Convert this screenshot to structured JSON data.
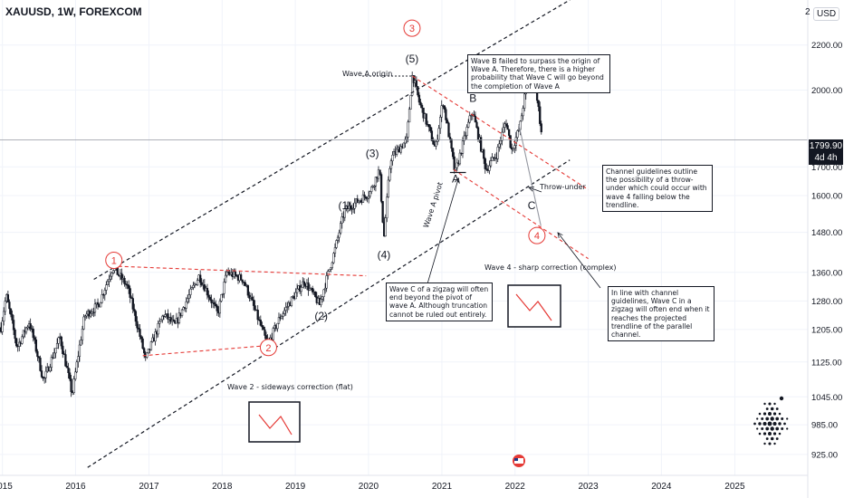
{
  "header": {
    "symbol_line": "XAUUSD, 1W, FOREXCOM",
    "currency_prefix": "2",
    "currency": "USD"
  },
  "price_tag": {
    "price": "1799.90",
    "countdown": "4d 4h"
  },
  "colors": {
    "up": "#131722",
    "down": "#131722",
    "channel": "#131722",
    "red": "#e53935",
    "grid": "#f0f3fa"
  },
  "chart_data": {
    "type": "candlestick",
    "x_axis": {
      "range": [
        "2014-12-20",
        "2025-12-31"
      ],
      "tick_labels": [
        "2015",
        "2016",
        "2017",
        "2018",
        "2019",
        "2020",
        "2021",
        "2022",
        "2023",
        "2024",
        "2025"
      ]
    },
    "y_axis": {
      "scale": "log",
      "range": [
        885,
        2420
      ],
      "side": "right",
      "tick_labels": [
        "2200.00",
        "2000.00",
        "1700.00",
        "1600.00",
        "1480.00",
        "1360.00",
        "1280.00",
        "1205.00",
        "1125.00",
        "1045.00",
        "985.00",
        "925.00"
      ],
      "tick_values": [
        2200,
        2000,
        1700,
        1600,
        1480,
        1360,
        1280,
        1205,
        1125,
        1045,
        985,
        925
      ]
    },
    "price_path": [
      [
        "2014-12-25",
        1210
      ],
      [
        "2015-01-20",
        1295
      ],
      [
        "2015-03-15",
        1160
      ],
      [
        "2015-05-15",
        1225
      ],
      [
        "2015-07-25",
        1080
      ],
      [
        "2015-10-15",
        1185
      ],
      [
        "2015-12-15",
        1050
      ],
      [
        "2016-02-15",
        1240
      ],
      [
        "2016-04-25",
        1270
      ],
      [
        "2016-07-05",
        1375
      ],
      [
        "2016-09-15",
        1320
      ],
      [
        "2016-12-15",
        1130
      ],
      [
        "2017-03-15",
        1245
      ],
      [
        "2017-05-10",
        1215
      ],
      [
        "2017-09-08",
        1350
      ],
      [
        "2017-12-10",
        1245
      ],
      [
        "2018-01-25",
        1360
      ],
      [
        "2018-04-15",
        1340
      ],
      [
        "2018-08-16",
        1165
      ],
      [
        "2018-10-15",
        1235
      ],
      [
        "2019-02-15",
        1335
      ],
      [
        "2019-05-02",
        1270
      ],
      [
        "2019-07-15",
        1420
      ],
      [
        "2019-09-04",
        1550
      ],
      [
        "2020-01-08",
        1610
      ],
      [
        "2020-02-24",
        1690
      ],
      [
        "2020-03-18",
        1460
      ],
      [
        "2020-04-20",
        1730
      ],
      [
        "2020-07-10",
        1800
      ],
      [
        "2020-08-07",
        2070
      ],
      [
        "2020-09-10",
        1950
      ],
      [
        "2020-11-30",
        1765
      ],
      [
        "2021-01-06",
        1955
      ],
      [
        "2021-03-08",
        1675
      ],
      [
        "2021-06-01",
        1915
      ],
      [
        "2021-08-09",
        1690
      ],
      [
        "2021-09-30",
        1745
      ],
      [
        "2021-11-16",
        1875
      ],
      [
        "2021-12-15",
        1760
      ],
      [
        "2022-01-25",
        1850
      ],
      [
        "2022-03-08",
        2070
      ],
      [
        "2022-04-18",
        1990
      ],
      [
        "2022-05-16",
        1800
      ]
    ],
    "last_price": 1799.9,
    "annotations": {
      "red_waves": [
        {
          "label": "1",
          "date": "2016-07-10",
          "price": 1395
        },
        {
          "label": "2",
          "date": "2018-08-20",
          "price": 1160
        },
        {
          "label": "3",
          "date": "2020-08-05",
          "price": 2280
        },
        {
          "label": "4",
          "date": "2022-04-20",
          "price": 1470
        }
      ],
      "black_waves": [
        {
          "label": "(1)",
          "date": "2019-09-05",
          "price": 1555
        },
        {
          "label": "(2)",
          "date": "2019-05-10",
          "price": 1230
        },
        {
          "label": "(3)",
          "date": "2020-01-20",
          "price": 1735
        },
        {
          "label": "(4)",
          "date": "2020-03-18",
          "price": 1400
        },
        {
          "label": "(5)",
          "date": "2020-08-05",
          "price": 2120
        },
        {
          "label": "A",
          "date": "2021-03-10",
          "price": 1645
        },
        {
          "label": "B",
          "date": "2021-06-05",
          "price": 1950
        },
        {
          "label": "C",
          "date": "2022-03-25",
          "price": 1555
        }
      ]
    }
  },
  "labels": {
    "wave_a_origin": "Wave A origin",
    "wave_a_pivot": "Wave A pivot",
    "throw_under": "Throw-under",
    "wave2_caption": "Wave 2 - sideways correction (flat)",
    "wave4_caption": "Wave 4 - sharp correction (complex)"
  },
  "notes": {
    "wave_b": "Wave B failed to surpass the origin of Wave A. Therefore, there is a higher probability that Wave C will go beyond the completion of Wave A",
    "channel": "Channel guidelines outline the possibility of a throw-under which could occur with wave 4 falling below the trendline.",
    "zigzag": "Wave C of a zigzag will often end beyond the pivot of wave A. Although truncation cannot be ruled out entirely.",
    "in_line": "In line with channel guidelines, Wave C in a zigzag will often end when it reaches the projected trendline of the parallel channel."
  }
}
